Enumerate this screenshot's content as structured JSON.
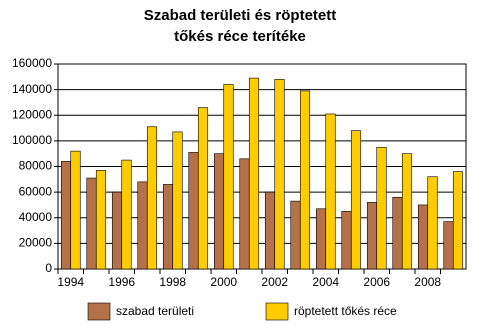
{
  "chart_data": {
    "type": "bar",
    "title": [
      "Szabad területi és röptetett",
      "tőkés réce terítéke"
    ],
    "categories": [
      "1994",
      null,
      "1996",
      null,
      "1998",
      null,
      "2000",
      null,
      "2002",
      null,
      "2004",
      null,
      "2006",
      null,
      "2008",
      null
    ],
    "series": [
      {
        "name": "szabad területi",
        "color": "#b5714a",
        "values": [
          84000,
          71000,
          60000,
          68000,
          66000,
          91000,
          90000,
          86000,
          60000,
          53000,
          47000,
          45000,
          52000,
          56000,
          50000,
          37000
        ]
      },
      {
        "name": "röptetett tőkés réce",
        "color": "#ffcc00",
        "values": [
          92000,
          77000,
          85000,
          111000,
          107000,
          126000,
          144000,
          149000,
          148000,
          139000,
          121000,
          108000,
          95000,
          90000,
          72000,
          76000
        ]
      }
    ],
    "ylim": [
      0,
      160000
    ],
    "yticks": [
      0,
      20000,
      40000,
      60000,
      80000,
      100000,
      120000,
      140000,
      160000
    ],
    "grid": true
  }
}
